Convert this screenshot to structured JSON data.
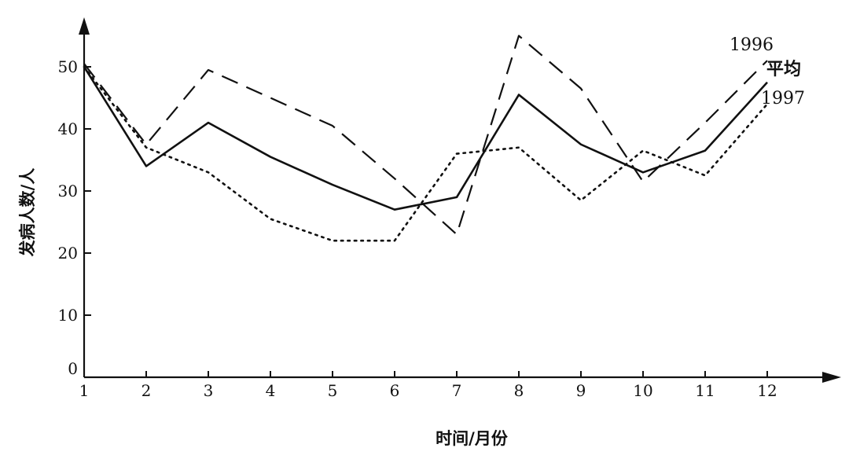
{
  "chart_data": {
    "type": "line",
    "x": [
      1,
      2,
      3,
      4,
      5,
      6,
      7,
      8,
      9,
      10,
      11,
      12
    ],
    "xlabel": "时间/月份",
    "ylabel": "发病人数/人",
    "ylim": [
      0,
      55
    ],
    "xlim": [
      1,
      13
    ],
    "yticks": [
      0,
      10,
      20,
      30,
      40,
      50
    ],
    "series": [
      {
        "name": "1996",
        "style": "dashed",
        "color": "#111111",
        "values": [
          50.5,
          37.5,
          49.5,
          45,
          40.5,
          32,
          23,
          55,
          46.5,
          31.5,
          41,
          51
        ]
      },
      {
        "name": "平均",
        "style": "solid",
        "color": "#111111",
        "values": [
          50,
          34,
          41,
          35.5,
          31,
          27,
          29,
          45.5,
          37.5,
          33,
          36.5,
          47.5
        ]
      },
      {
        "name": "1997",
        "style": "dotted",
        "color": "#111111",
        "values": [
          50,
          37,
          33,
          25.5,
          22,
          22,
          36,
          37,
          28.5,
          36.5,
          32.5,
          44
        ]
      }
    ],
    "grid": false
  }
}
